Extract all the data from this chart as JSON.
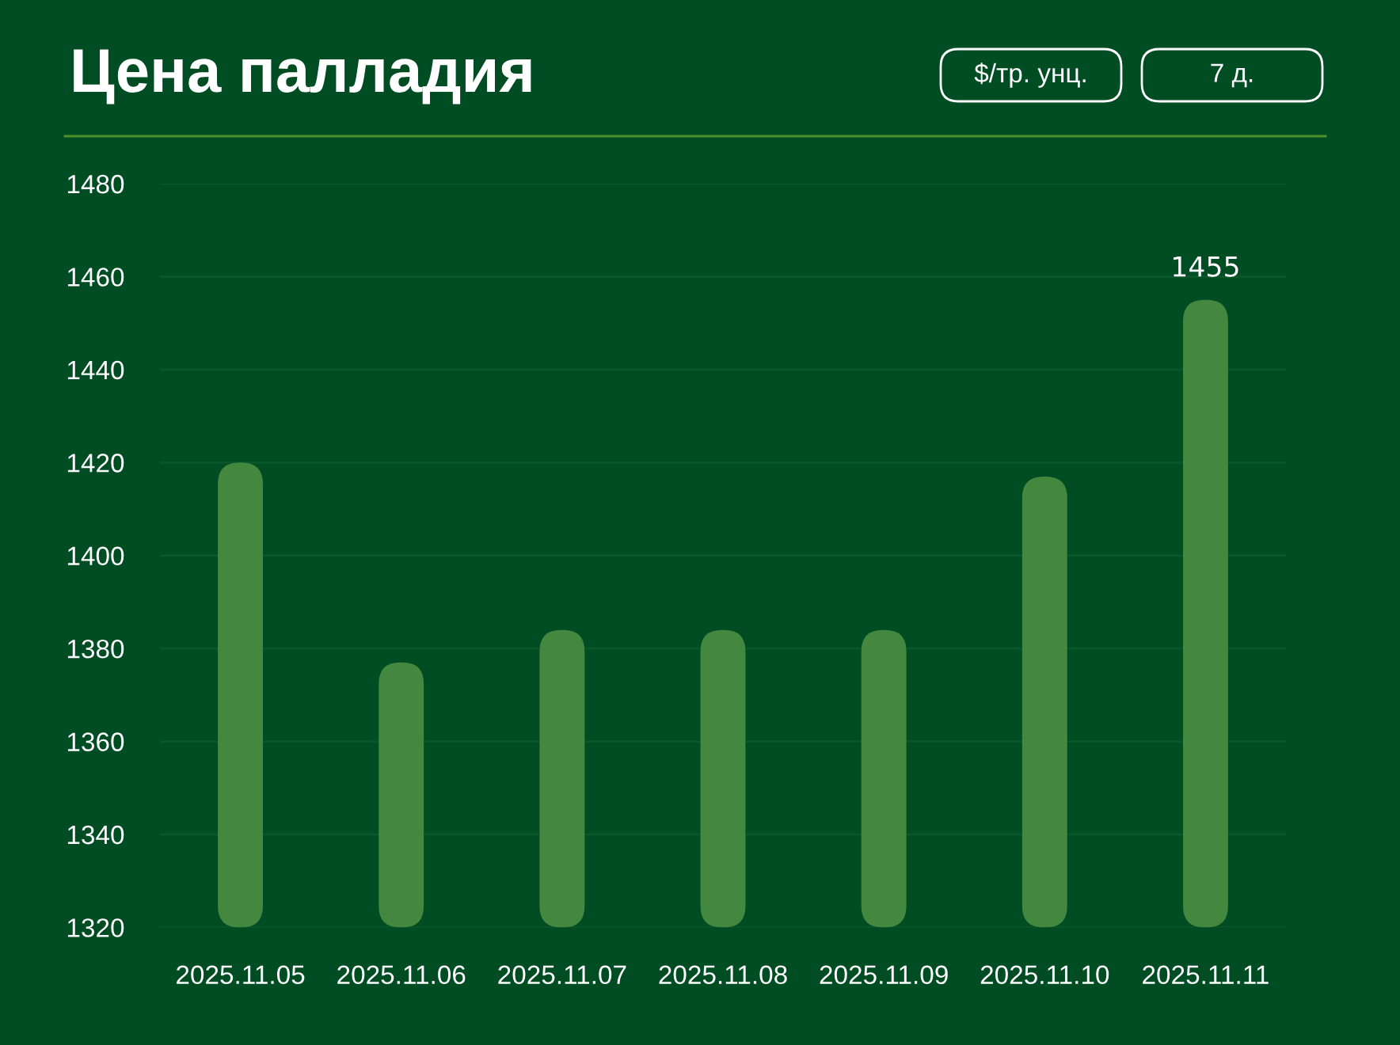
{
  "chart_data": {
    "type": "bar",
    "title": "Цена палладия",
    "annotations": [
      "$/тр. унц.",
      "7 д."
    ],
    "categories": [
      "2025.11.05",
      "2025.11.06",
      "2025.11.07",
      "2025.11.08",
      "2025.11.09",
      "2025.11.10",
      "2025.11.11"
    ],
    "values": [
      1420,
      1377,
      1384,
      1384,
      1384,
      1417,
      1455
    ],
    "value_labels": [
      null,
      null,
      null,
      null,
      null,
      null,
      "1455"
    ],
    "color": "#448840",
    "ylim": [
      1320,
      1480
    ],
    "yticks": [
      1320,
      1340,
      1360,
      1380,
      1400,
      1420,
      1440,
      1460,
      1480
    ],
    "grid": "y"
  }
}
